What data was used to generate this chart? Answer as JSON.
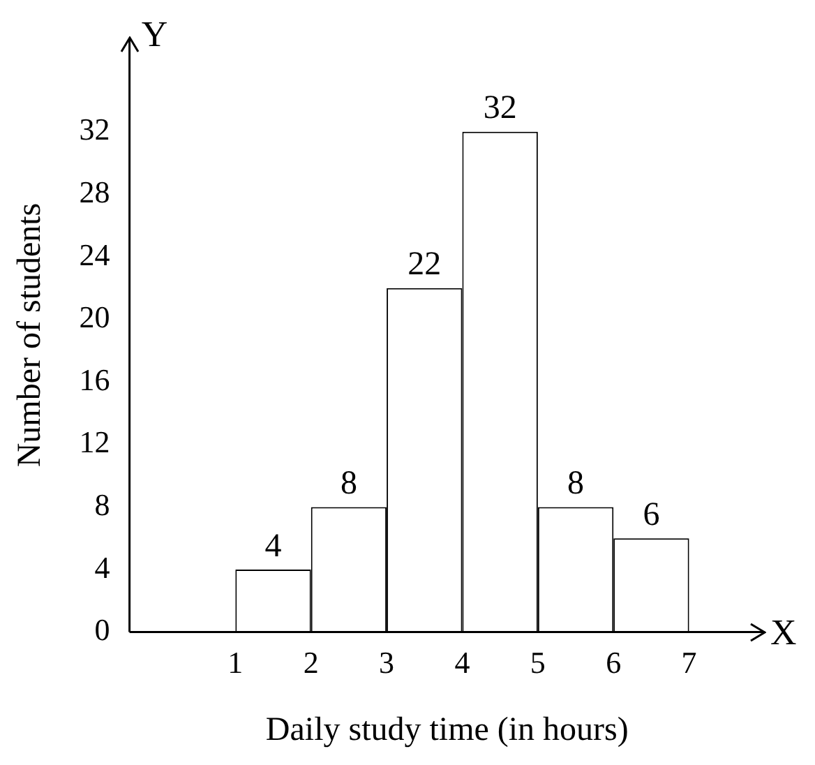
{
  "chart_data": {
    "type": "histogram",
    "xlabel": "Daily study time (in hours)",
    "ylabel": "Number of students",
    "bins": [
      1,
      2,
      3,
      4,
      5,
      6,
      7
    ],
    "values": [
      4,
      8,
      22,
      32,
      8,
      6
    ],
    "color": "#ffffff",
    "xlim": [
      -0.4,
      8
    ],
    "ylim": [
      0,
      38
    ],
    "xticks": [
      1,
      2,
      3,
      4,
      5,
      6,
      7
    ],
    "yticks": [
      0,
      4,
      8,
      12,
      16,
      20,
      24,
      28,
      32
    ],
    "data_labels": true,
    "grid": false,
    "legend": false,
    "annotations": [
      "Y",
      "X"
    ]
  }
}
